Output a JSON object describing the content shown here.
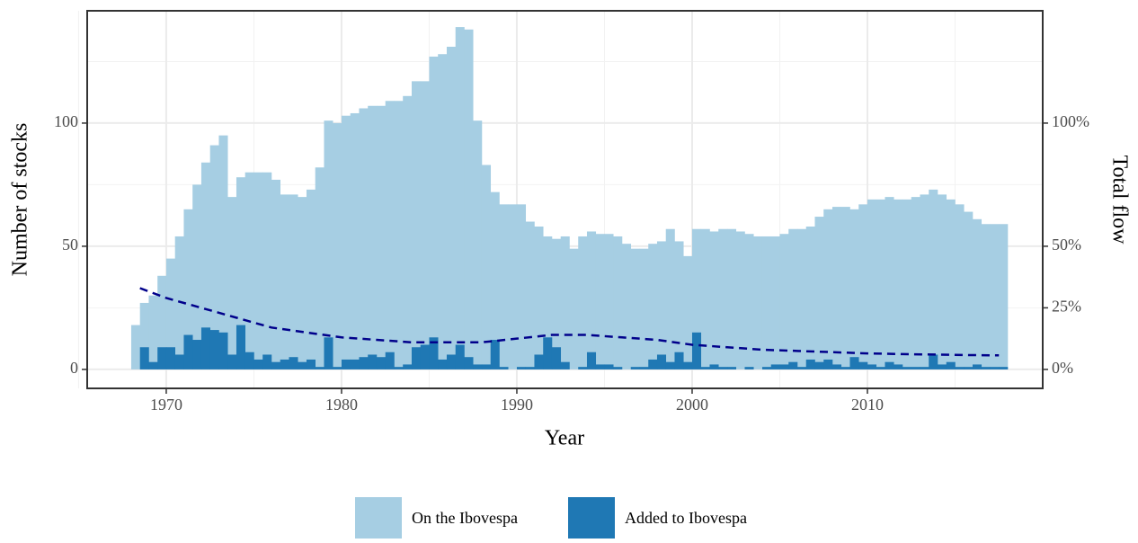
{
  "chart_data": {
    "type": "bar",
    "xlabel": "Year",
    "ylabel": "Number of stocks",
    "y2label": "Total flow",
    "xlim": [
      1965.49,
      2020.0
    ],
    "ylim": [
      -7.7,
      145.6
    ],
    "y2lim": [
      -7.7,
      145.6
    ],
    "xticks": [
      1970,
      1980,
      1990,
      2000,
      2010
    ],
    "xminorticks": [
      1965,
      1975,
      1985,
      1995,
      2005,
      2015
    ],
    "yticks": [
      0,
      50,
      100
    ],
    "yminorticks": [
      25,
      75,
      125
    ],
    "y2ticks": [
      {
        "value": 0,
        "label": "0%"
      },
      {
        "value": 25,
        "label": "25%"
      },
      {
        "value": 50,
        "label": "50%"
      },
      {
        "value": 100,
        "label": "100%"
      }
    ],
    "grid": true,
    "legend": "bottom",
    "bar_width": 0.5,
    "x": [
      1968.0,
      1968.5,
      1969.0,
      1969.5,
      1970.0,
      1970.5,
      1971.0,
      1971.5,
      1972.0,
      1972.5,
      1973.0,
      1973.5,
      1974.0,
      1974.5,
      1975.0,
      1975.5,
      1976.0,
      1976.5,
      1977.0,
      1977.5,
      1978.0,
      1978.5,
      1979.0,
      1979.5,
      1980.0,
      1980.5,
      1981.0,
      1981.5,
      1982.0,
      1982.5,
      1983.0,
      1983.5,
      1984.0,
      1984.5,
      1985.0,
      1985.5,
      1986.0,
      1986.5,
      1987.0,
      1987.5,
      1988.0,
      1988.5,
      1989.0,
      1989.5,
      1990.0,
      1990.5,
      1991.0,
      1991.5,
      1992.0,
      1992.5,
      1993.0,
      1993.5,
      1994.0,
      1994.5,
      1995.0,
      1995.5,
      1996.0,
      1996.5,
      1997.0,
      1997.5,
      1998.0,
      1998.5,
      1999.0,
      1999.5,
      2000.0,
      2000.5,
      2001.0,
      2001.5,
      2002.0,
      2002.5,
      2003.0,
      2003.5,
      2004.0,
      2004.5,
      2005.0,
      2005.5,
      2006.0,
      2006.5,
      2007.0,
      2007.5,
      2008.0,
      2008.5,
      2009.0,
      2009.5,
      2010.0,
      2010.5,
      2011.0,
      2011.5,
      2012.0,
      2012.5,
      2013.0,
      2013.5,
      2014.0,
      2014.5,
      2015.0,
      2015.5,
      2016.0,
      2016.5,
      2017.0,
      2017.5
    ],
    "series": [
      {
        "name": "On the Ibovespa",
        "color": "#a6cee3",
        "values": [
          18,
          27,
          30,
          38,
          45,
          54,
          65,
          75,
          84,
          91,
          95,
          70,
          78,
          80,
          80,
          80,
          77,
          71,
          71,
          70,
          73,
          82,
          101,
          100,
          103,
          104,
          106,
          107,
          107,
          109,
          109,
          111,
          117,
          117,
          127,
          128,
          131,
          139,
          138,
          101,
          83,
          72,
          67,
          67,
          67,
          60,
          58,
          54,
          53,
          54,
          49,
          54,
          56,
          55,
          55,
          54,
          51,
          49,
          49,
          51,
          52,
          57,
          52,
          46,
          57,
          57,
          56,
          57,
          57,
          56,
          55,
          54,
          54,
          54,
          55,
          57,
          57,
          58,
          62,
          65,
          66,
          66,
          65,
          67,
          69,
          69,
          70,
          69,
          69,
          70,
          71,
          73,
          71,
          69,
          67,
          64,
          61,
          59,
          59,
          59
        ]
      },
      {
        "name": "Added to Ibovespa",
        "color": "#1f78b4",
        "values": [
          0,
          9,
          3,
          9,
          9,
          6,
          14,
          12,
          17,
          16,
          15,
          6,
          18,
          7,
          4,
          6,
          3,
          4,
          5,
          3,
          4,
          1,
          13,
          1,
          4,
          4,
          5,
          6,
          5,
          7,
          1,
          2,
          9,
          10,
          13,
          4,
          6,
          10,
          5,
          2,
          2,
          12,
          1,
          0,
          1,
          1,
          6,
          13,
          9,
          3,
          0,
          1,
          7,
          2,
          2,
          1,
          0,
          1,
          1,
          4,
          6,
          3,
          7,
          3,
          15,
          1,
          2,
          1,
          1,
          0,
          1,
          0,
          1,
          2,
          2,
          3,
          1,
          4,
          3,
          4,
          2,
          1,
          5,
          3,
          2,
          1,
          3,
          2,
          1,
          1,
          1,
          6,
          2,
          3,
          1,
          1,
          2,
          1,
          1,
          1
        ]
      }
    ],
    "flow": {
      "axis": "y2",
      "color": "#00008b",
      "dashed": true,
      "x": [
        1968.5,
        1970,
        1972,
        1974,
        1976,
        1978,
        1980,
        1982,
        1984,
        1986,
        1988,
        1990,
        1992,
        1994,
        1996,
        1998,
        2000,
        2002,
        2004,
        2006,
        2008,
        2010,
        2012,
        2014,
        2016,
        2017.5
      ],
      "values": [
        33,
        29,
        25,
        21,
        17,
        15,
        13,
        12,
        11,
        11,
        11,
        12.5,
        14,
        14,
        13,
        12,
        10,
        9,
        8,
        7.5,
        7,
        6.5,
        6.2,
        6,
        5.8,
        5.7
      ]
    }
  }
}
